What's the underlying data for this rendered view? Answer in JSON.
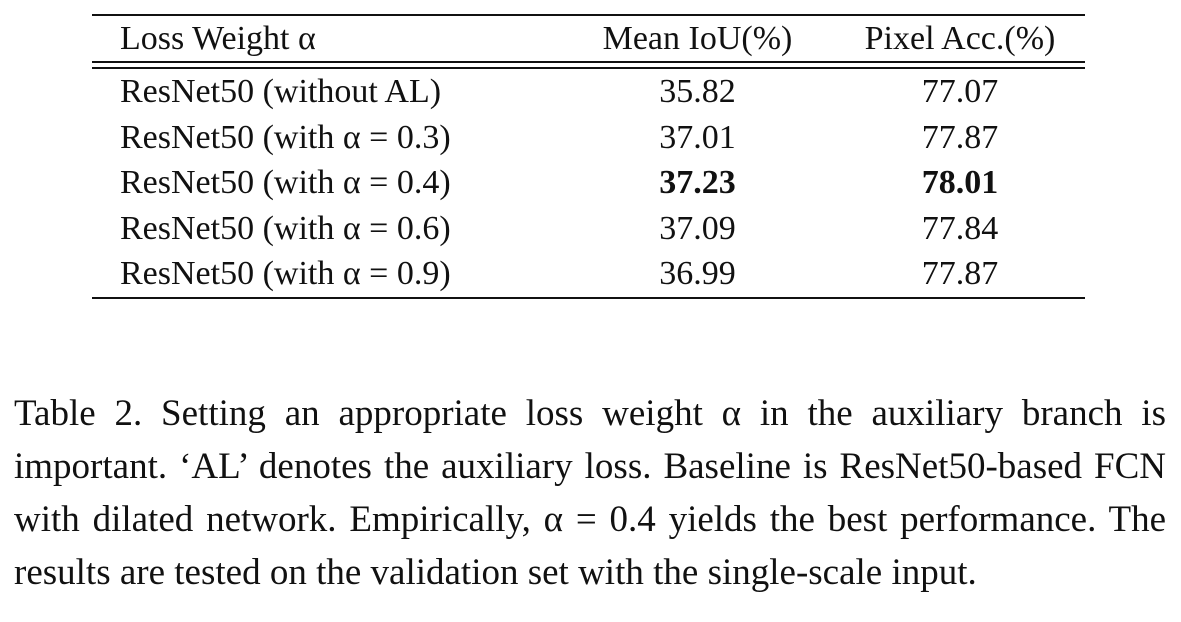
{
  "table": {
    "headers": [
      "Loss Weight α",
      "Mean IoU(%)",
      "Pixel Acc.(%)"
    ],
    "rows": [
      {
        "method": "ResNet50 (without AL)",
        "miou": "35.82",
        "pixacc": "77.07",
        "bold": false
      },
      {
        "method": "ResNet50 (with α = 0.3)",
        "miou": "37.01",
        "pixacc": "77.87",
        "bold": false
      },
      {
        "method": "ResNet50 (with α = 0.4)",
        "miou": "37.23",
        "pixacc": "78.01",
        "bold": true
      },
      {
        "method": "ResNet50 (with α = 0.6)",
        "miou": "37.09",
        "pixacc": "77.84",
        "bold": false
      },
      {
        "method": "ResNet50 (with α = 0.9)",
        "miou": "36.99",
        "pixacc": "77.87",
        "bold": false
      }
    ]
  },
  "caption": {
    "label": "Table 2.",
    "text": "Setting an appropriate loss weight α in the auxiliary branch is important. ‘AL’ denotes the auxiliary loss. Baseline is ResNet50-based FCN with dilated network. Empirically, α = 0.4 yields the best performance. The results are tested on the validation set with the single-scale input."
  }
}
